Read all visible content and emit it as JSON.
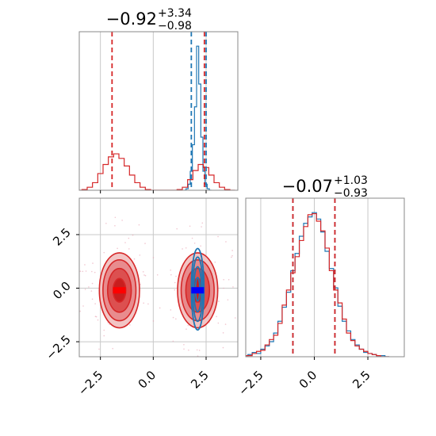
{
  "chart_data": [
    {
      "panel": "marginal-param-1",
      "type": "histogram",
      "title": {
        "value": "−0.92",
        "upper": "+3.34",
        "lower": "−0.98"
      },
      "xlim": [
        -3.5,
        4.0
      ],
      "grid": true,
      "series": [
        {
          "color": "#1f77b4",
          "type": "step-histogram",
          "x": [
            1.5,
            1.6,
            1.7,
            1.8,
            1.9,
            2.0,
            2.1,
            2.2,
            2.3,
            2.4,
            2.5,
            2.6,
            2.7
          ],
          "y": [
            0,
            2,
            8,
            25,
            60,
            110,
            190,
            140,
            70,
            25,
            8,
            2,
            0
          ]
        },
        {
          "color": "#d62728",
          "type": "step-histogram",
          "x": [
            -3.5,
            -3.25,
            -3.0,
            -2.75,
            -2.5,
            -2.25,
            -2.0,
            -1.75,
            -1.5,
            -1.25,
            -1.0,
            -0.75,
            -0.5,
            -0.25,
            0.0,
            0.25,
            0.5,
            0.75,
            1.0,
            1.25,
            1.5,
            1.75,
            2.0,
            2.25,
            2.5,
            2.75,
            3.0,
            3.25,
            3.5,
            3.75
          ],
          "y": [
            0,
            1,
            4,
            10,
            22,
            34,
            44,
            48,
            42,
            32,
            20,
            10,
            4,
            1,
            0,
            0,
            0,
            0,
            0,
            1,
            4,
            14,
            26,
            34,
            30,
            20,
            10,
            4,
            1,
            0
          ]
        }
      ],
      "quantile_lines": [
        {
          "color": "#1f77b4",
          "x": [
            1.8,
            2.5
          ]
        },
        {
          "color": "#d62728",
          "x": [
            -1.95,
            2.42
          ]
        }
      ]
    },
    {
      "panel": "joint-param-1-param-2",
      "type": "contour",
      "xlim": [
        -3.5,
        4.0
      ],
      "ylim": [
        -3.2,
        4.2
      ],
      "xticks": [
        "−2.5",
        "0.0",
        "2.5"
      ],
      "yticks": [
        "−2.5",
        "0.0",
        "2.5"
      ],
      "grid": true,
      "series": [
        {
          "color": "#1f77b4",
          "mode": "lines",
          "center": [
            2.1,
            -0.05
          ]
        },
        {
          "color": "#d62728",
          "mode": "filled",
          "centers": [
            [
              -1.6,
              -0.1
            ],
            [
              2.1,
              -0.1
            ]
          ]
        }
      ],
      "peak_markers": [
        {
          "color": "#ff0000",
          "x": -1.6,
          "y": -0.1
        },
        {
          "color": "#0000ff",
          "x": 2.1,
          "y": -0.1
        }
      ]
    },
    {
      "panel": "marginal-param-2",
      "type": "histogram",
      "title": {
        "value": "−0.07",
        "upper": "+1.03",
        "lower": "−0.93"
      },
      "xlim": [
        -3.2,
        4.2
      ],
      "xticks": [
        "−2.5",
        "0.0",
        "2.5"
      ],
      "grid": true,
      "series": [
        {
          "color": "#1f77b4",
          "type": "step-histogram",
          "x": [
            -3.2,
            -3.0,
            -2.8,
            -2.6,
            -2.4,
            -2.2,
            -2.0,
            -1.8,
            -1.6,
            -1.4,
            -1.2,
            -1.0,
            -0.8,
            -0.6,
            -0.4,
            -0.2,
            0.0,
            0.2,
            0.4,
            0.6,
            0.8,
            1.0,
            1.2,
            1.4,
            1.6,
            1.8,
            2.0,
            2.2,
            2.4,
            2.6,
            2.8,
            3.0,
            3.2,
            3.4
          ],
          "y": [
            1,
            2,
            4,
            3,
            7,
            10,
            14,
            22,
            33,
            46,
            60,
            80,
            96,
            112,
            124,
            130,
            134,
            128,
            116,
            98,
            82,
            64,
            47,
            33,
            24,
            16,
            11,
            7,
            4,
            3,
            2,
            1,
            1,
            0
          ]
        },
        {
          "color": "#d62728",
          "type": "step-histogram",
          "x": [
            -3.2,
            -3.0,
            -2.8,
            -2.6,
            -2.4,
            -2.2,
            -2.0,
            -1.8,
            -1.6,
            -1.4,
            -1.2,
            -1.0,
            -0.8,
            -0.6,
            -0.4,
            -0.2,
            0.0,
            0.2,
            0.4,
            0.6,
            0.8,
            1.0,
            1.2,
            1.4,
            1.6,
            1.8,
            2.0,
            2.2,
            2.4,
            2.6,
            2.8,
            3.0,
            3.2,
            3.4
          ],
          "y": [
            1,
            1,
            3,
            5,
            6,
            11,
            16,
            20,
            31,
            48,
            62,
            78,
            93,
            108,
            121,
            132,
            133,
            126,
            117,
            101,
            80,
            62,
            50,
            35,
            22,
            15,
            10,
            7,
            5,
            3,
            2,
            1,
            0,
            0
          ]
        }
      ],
      "quantile_lines": [
        {
          "color": "#1f77b4",
          "x": [
            -1.0,
            0.96
          ]
        },
        {
          "color": "#d62728",
          "x": [
            -1.0,
            0.96
          ]
        }
      ]
    }
  ]
}
